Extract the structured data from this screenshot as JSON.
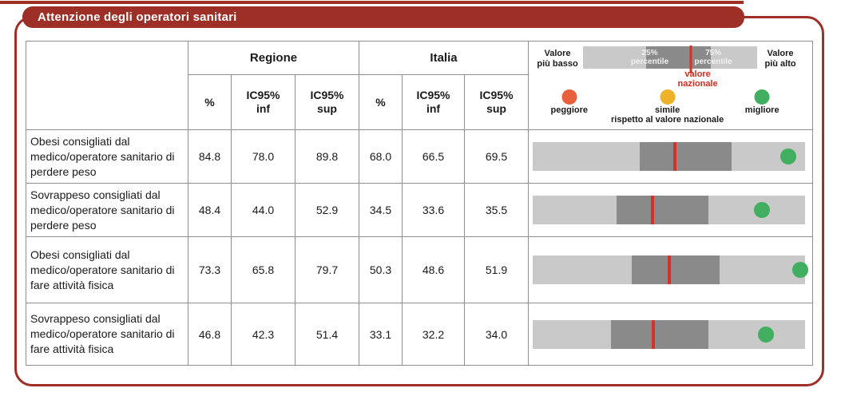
{
  "title_bar": {
    "text": "Attenzione degli operatori sanitari"
  },
  "table": {
    "group_regione": "Regione",
    "group_italia": "Italia",
    "col_pct": "%",
    "col_inf": "IC95%\ninf",
    "col_sup": "IC95%\nsup"
  },
  "legend": {
    "low": "Valore\npiù basso",
    "high": "Valore\npiù alto",
    "p25": "25%\npercentile",
    "p75": "75%\npercentile",
    "national": "valore\nnazionale",
    "worse": "peggiore",
    "similar": "simile",
    "better": "migliore",
    "footer": "rispetto al valore nazionale",
    "bar": {
      "dark_start": 0.36,
      "dark_end": 0.735,
      "national_line": 0.621,
      "p25_center": 0.383,
      "p75_center": 0.748
    },
    "positions": {
      "national_center": 0.596,
      "worse_center": 0.143,
      "similar_center": 0.489,
      "better_center": 0.823
    }
  },
  "colors": {
    "frame_red": "#9e2f27",
    "track_gray": "#c9c9c9",
    "range_gray": "#8a8a8a",
    "national_red": "#d03428",
    "dot_green": "#42ae5f",
    "dot_yellow": "#efb02a",
    "dot_orange": "#e75f3d"
  },
  "chart_data": {
    "type": "table",
    "title": "Attenzione degli operatori sanitari",
    "groups": [
      "Regione",
      "Italia"
    ],
    "columns": [
      "%",
      "IC95% inf",
      "IC95% sup"
    ],
    "rows": [
      {
        "label": "Obesi consigliati dal medico/operatore sanitario di perdere peso",
        "regione": {
          "pct": 84.8,
          "inf": 78.0,
          "sup": 89.8
        },
        "italia": {
          "pct": 68.0,
          "inf": 66.5,
          "sup": 69.5
        },
        "bar": {
          "q1": 0.394,
          "q3": 0.73,
          "national": 0.522,
          "dot": 0.939,
          "dot_color": "green",
          "dot_status": "migliore"
        }
      },
      {
        "label": "Sovrappeso consigliati dal medico/operatore sanitario di perdere peso",
        "regione": {
          "pct": 48.4,
          "inf": 44.0,
          "sup": 52.9
        },
        "italia": {
          "pct": 34.5,
          "inf": 33.6,
          "sup": 35.5
        },
        "bar": {
          "q1": 0.307,
          "q3": 0.646,
          "national": 0.441,
          "dot": 0.841,
          "dot_color": "green",
          "dot_status": "migliore"
        }
      },
      {
        "label": "Obesi consigliati dal medico/operatore sanitario di fare attività fisica",
        "regione": {
          "pct": 73.3,
          "inf": 65.8,
          "sup": 79.7
        },
        "italia": {
          "pct": 50.3,
          "inf": 48.6,
          "sup": 51.9
        },
        "bar": {
          "q1": 0.365,
          "q3": 0.687,
          "national": 0.501,
          "dot": 0.983,
          "dot_color": "green",
          "dot_status": "migliore"
        }
      },
      {
        "label": "Sovrappeso consigliati dal medico/operatore sanitario di fare attività fisica",
        "regione": {
          "pct": 46.8,
          "inf": 42.3,
          "sup": 51.4
        },
        "italia": {
          "pct": 33.1,
          "inf": 32.2,
          "sup": 34.0
        },
        "bar": {
          "q1": 0.287,
          "q3": 0.646,
          "national": 0.443,
          "dot": 0.855,
          "dot_color": "green",
          "dot_status": "migliore"
        }
      }
    ]
  }
}
